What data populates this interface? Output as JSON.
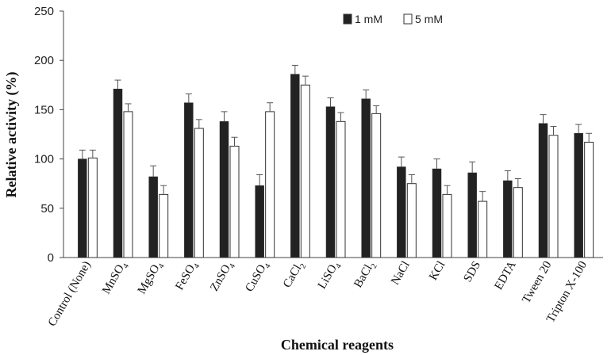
{
  "chart_data": {
    "type": "bar",
    "title": "",
    "xlabel": "Chemical reagents",
    "ylabel": "Relative activity (%)",
    "ylim": [
      0,
      250
    ],
    "yticks": [
      "0",
      "50",
      "100",
      "150",
      "200",
      "250"
    ],
    "grid": false,
    "legend_position": "top-right",
    "categories": [
      {
        "base": "Control (None)",
        "sub": ""
      },
      {
        "base": "MnSO",
        "sub": "4"
      },
      {
        "base": "MgSO",
        "sub": "4"
      },
      {
        "base": "FeSO",
        "sub": "4"
      },
      {
        "base": "ZnSO",
        "sub": "4"
      },
      {
        "base": "CuSO",
        "sub": "4"
      },
      {
        "base": "CaCl",
        "sub": "2"
      },
      {
        "base": "LiSO",
        "sub": "4"
      },
      {
        "base": "BaCl",
        "sub": "2"
      },
      {
        "base": "NaCl",
        "sub": ""
      },
      {
        "base": "KCl",
        "sub": ""
      },
      {
        "base": "SDS",
        "sub": ""
      },
      {
        "base": "EDTA",
        "sub": ""
      },
      {
        "base": "Tween 20",
        "sub": ""
      },
      {
        "base": "Tripton X-100",
        "sub": ""
      }
    ],
    "series": [
      {
        "name": "1 mM",
        "color": "#222222",
        "values": [
          100,
          171,
          82,
          157,
          138,
          73,
          186,
          153,
          161,
          92,
          90,
          86,
          78,
          136,
          126
        ],
        "errors": [
          9,
          9,
          11,
          9,
          10,
          11,
          9,
          9,
          9,
          10,
          10,
          11,
          10,
          9,
          9
        ]
      },
      {
        "name": "5 mM",
        "color": "#ffffff",
        "values": [
          101,
          148,
          64,
          131,
          113,
          148,
          175,
          138,
          146,
          75,
          64,
          57,
          71,
          124,
          117
        ],
        "errors": [
          8,
          8,
          9,
          9,
          9,
          9,
          9,
          9,
          8,
          9,
          9,
          10,
          9,
          9,
          9
        ]
      }
    ]
  }
}
